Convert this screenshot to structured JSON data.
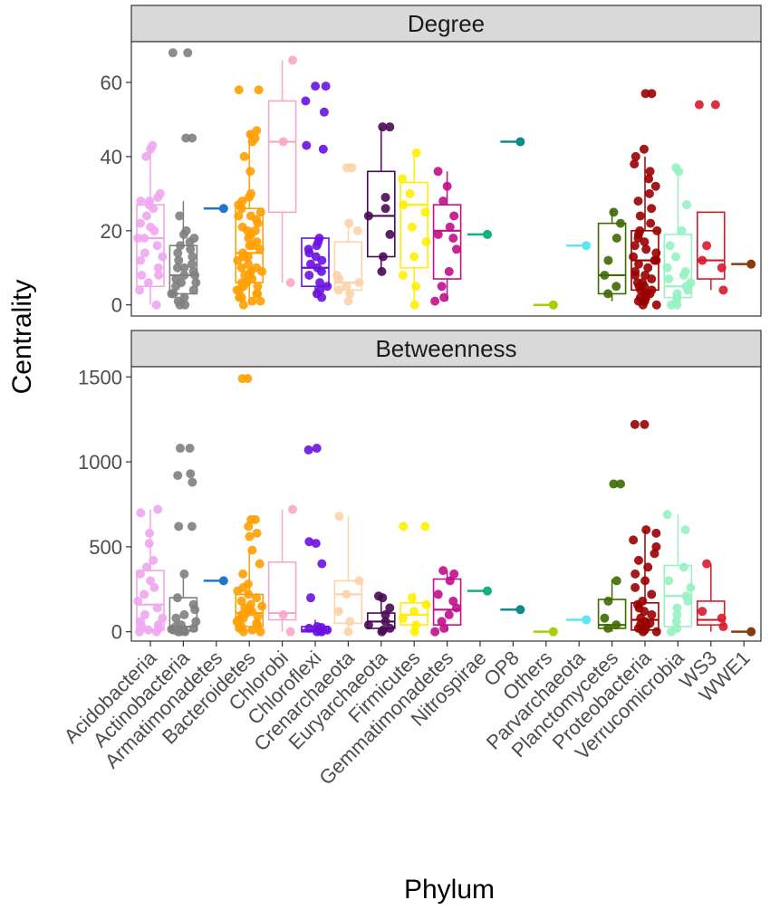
{
  "chart_data": {
    "type": "boxplot",
    "xlabel": "Phylum",
    "ylabel": "Centrality",
    "categories": [
      "Acidobacteria",
      "Actinobacteria",
      "Armatimonadetes",
      "Bacteroidetes",
      "Chlorobi",
      "Chloroflexi",
      "Crenarchaeota",
      "Euryarchaeota",
      "Firmicutes",
      "Gemmatimonadetes",
      "Nitrospirae",
      "OP8",
      "Others",
      "Parvarchaeota",
      "Planctomycetes",
      "Proteobacteria",
      "Verrucomicrobia",
      "WS3",
      "WWE1"
    ],
    "colors": [
      "#f0a6ef",
      "#7f7f7f",
      "#1f77c8",
      "#ff9f00",
      "#f7a7c6",
      "#6a11e0",
      "#fdd3a8",
      "#4b0a55",
      "#ffef00",
      "#c0108a",
      "#12b07a",
      "#138a8a",
      "#a4d100",
      "#5ee6f0",
      "#3f6a00",
      "#9a0000",
      "#96f2c2",
      "#d8192c",
      "#8b3a0a"
    ],
    "panels": [
      {
        "strip": "Degree",
        "ylim": [
          -3,
          71
        ],
        "yticks": [
          0,
          20,
          40,
          60
        ],
        "boxes": [
          {
            "q1": 5,
            "median": 18,
            "q3": 27,
            "lo": 0,
            "hi": 43
          },
          {
            "q1": 3,
            "median": 8,
            "q3": 16,
            "lo": 0,
            "hi": 28
          },
          null,
          {
            "q1": 6,
            "median": 14,
            "q3": 26,
            "lo": 0,
            "hi": 47
          },
          {
            "q1": 25,
            "median": 44,
            "q3": 55,
            "lo": 6,
            "hi": 66
          },
          {
            "q1": 5,
            "median": 10,
            "q3": 18,
            "lo": 2,
            "hi": 18
          },
          {
            "q1": 4,
            "median": 6,
            "q3": 17,
            "lo": 1,
            "hi": 22
          },
          {
            "q1": 13,
            "median": 24,
            "q3": 36,
            "lo": 9,
            "hi": 48
          },
          {
            "q1": 10,
            "median": 27,
            "q3": 33,
            "lo": 0,
            "hi": 41
          },
          {
            "q1": 7,
            "median": 20,
            "q3": 27,
            "lo": 1,
            "hi": 36
          },
          null,
          null,
          null,
          null,
          {
            "q1": 3,
            "median": 8,
            "q3": 22,
            "lo": 1,
            "hi": 26
          },
          {
            "q1": 4,
            "median": 12,
            "q3": 20,
            "lo": 0,
            "hi": 40
          },
          {
            "q1": 2,
            "median": 5,
            "q3": 19,
            "lo": 0,
            "hi": 36
          },
          {
            "q1": 7,
            "median": 12,
            "q3": 25,
            "lo": 4,
            "hi": 25
          },
          null
        ],
        "points": [
          [
            0,
            4,
            6,
            8,
            8,
            10,
            12,
            13,
            14,
            16,
            18,
            18,
            20,
            21,
            22,
            24,
            26,
            27,
            28,
            28,
            29,
            30,
            40,
            42,
            43
          ],
          [
            0,
            0,
            1,
            2,
            3,
            3,
            4,
            5,
            6,
            6,
            7,
            8,
            8,
            9,
            10,
            10,
            11,
            12,
            13,
            14,
            15,
            16,
            17,
            18,
            19,
            20,
            24,
            45,
            45,
            68,
            68
          ],
          [
            26
          ],
          [
            0,
            1,
            1,
            2,
            2,
            3,
            3,
            4,
            4,
            5,
            5,
            6,
            6,
            7,
            8,
            8,
            9,
            9,
            10,
            10,
            11,
            12,
            13,
            13,
            14,
            15,
            16,
            16,
            17,
            18,
            19,
            20,
            20,
            21,
            22,
            23,
            24,
            24,
            25,
            26,
            27,
            28,
            29,
            30,
            36,
            40,
            44,
            45,
            46,
            47,
            58,
            58
          ],
          [
            6,
            44,
            66
          ],
          [
            2,
            3,
            4,
            5,
            6,
            8,
            9,
            10,
            11,
            12,
            13,
            14,
            15,
            16,
            17,
            18,
            42,
            43,
            52,
            55,
            59,
            59
          ],
          [
            1,
            3,
            4,
            5,
            6,
            7,
            8,
            20,
            22,
            37,
            37
          ],
          [
            9,
            13,
            19,
            24,
            26,
            29,
            48,
            48
          ],
          [
            0,
            5,
            8,
            13,
            17,
            21,
            25,
            27,
            30,
            34,
            41
          ],
          [
            1,
            2,
            5,
            9,
            15,
            18,
            19,
            21,
            24,
            28,
            32,
            36
          ],
          [
            19
          ],
          [
            44
          ],
          [
            0
          ],
          [
            16
          ],
          [
            3,
            5,
            8,
            12,
            18,
            22,
            25
          ],
          [
            0,
            0,
            1,
            1,
            2,
            2,
            3,
            3,
            4,
            4,
            5,
            5,
            6,
            6,
            7,
            8,
            8,
            9,
            10,
            11,
            12,
            12,
            13,
            14,
            15,
            16,
            17,
            18,
            19,
            20,
            20,
            22,
            24,
            26,
            28,
            30,
            32,
            34,
            36,
            38,
            40,
            42,
            57,
            57
          ],
          [
            0,
            0,
            1,
            2,
            3,
            4,
            5,
            6,
            7,
            8,
            9,
            10,
            13,
            16,
            20,
            27,
            36,
            37
          ],
          [
            4,
            10,
            12,
            16,
            54,
            54
          ],
          [
            11
          ]
        ]
      },
      {
        "strip": "Betweenness",
        "ylim": [
          -55,
          1560
        ],
        "yticks": [
          0,
          500,
          1000,
          1500
        ],
        "boxes": [
          {
            "q1": 10,
            "median": 160,
            "q3": 360,
            "lo": 0,
            "hi": 720
          },
          {
            "q1": 5,
            "median": 30,
            "q3": 200,
            "lo": 0,
            "hi": 340
          },
          null,
          {
            "q1": 30,
            "median": 110,
            "q3": 220,
            "lo": 0,
            "hi": 480
          },
          {
            "q1": 70,
            "median": 110,
            "q3": 410,
            "lo": 0,
            "hi": 720
          },
          {
            "q1": 0,
            "median": 10,
            "q3": 30,
            "lo": 0,
            "hi": 70
          },
          {
            "q1": 50,
            "median": 220,
            "q3": 300,
            "lo": 0,
            "hi": 680
          },
          {
            "q1": 20,
            "median": 60,
            "q3": 110,
            "lo": 0,
            "hi": 210
          },
          {
            "q1": 40,
            "median": 100,
            "q3": 170,
            "lo": 0,
            "hi": 230
          },
          {
            "q1": 40,
            "median": 130,
            "q3": 310,
            "lo": 0,
            "hi": 360
          },
          null,
          null,
          null,
          null,
          {
            "q1": 20,
            "median": 40,
            "q3": 190,
            "lo": 0,
            "hi": 310
          },
          {
            "q1": 10,
            "median": 70,
            "q3": 170,
            "lo": 0,
            "hi": 600
          },
          {
            "q1": 30,
            "median": 210,
            "q3": 390,
            "lo": 0,
            "hi": 690
          },
          {
            "q1": 40,
            "median": 70,
            "q3": 180,
            "lo": 0,
            "hi": 400
          },
          null
        ],
        "points": [
          [
            0,
            0,
            10,
            20,
            30,
            40,
            60,
            80,
            100,
            140,
            180,
            220,
            260,
            300,
            340,
            380,
            420,
            520,
            580,
            700,
            720
          ],
          [
            0,
            0,
            0,
            5,
            10,
            15,
            20,
            30,
            40,
            60,
            80,
            100,
            130,
            160,
            200,
            340,
            620,
            620,
            880,
            920,
            930,
            1080,
            1080
          ],
          [
            300
          ],
          [
            0,
            0,
            10,
            20,
            30,
            40,
            50,
            60,
            70,
            80,
            90,
            100,
            110,
            120,
            130,
            140,
            150,
            160,
            180,
            200,
            220,
            240,
            260,
            280,
            340,
            400,
            480,
            560,
            580,
            620,
            660,
            660,
            1490,
            1490
          ],
          [
            0,
            100,
            720
          ],
          [
            0,
            0,
            5,
            10,
            15,
            20,
            25,
            30,
            200,
            400,
            520,
            530,
            1070,
            1080
          ],
          [
            0,
            60,
            120,
            220,
            300,
            680
          ],
          [
            0,
            10,
            20,
            40,
            60,
            100,
            140,
            200,
            210
          ],
          [
            0,
            40,
            80,
            120,
            160,
            200,
            620,
            620
          ],
          [
            0,
            20,
            60,
            100,
            140,
            180,
            220,
            300,
            340,
            360
          ],
          [
            240
          ],
          [
            130
          ],
          [
            0
          ],
          [
            70
          ],
          [
            20,
            40,
            80,
            180,
            300,
            870,
            870
          ],
          [
            0,
            0,
            10,
            20,
            30,
            40,
            50,
            60,
            80,
            100,
            120,
            140,
            160,
            180,
            220,
            260,
            300,
            340,
            380,
            420,
            460,
            500,
            540,
            580,
            600,
            1220,
            1220
          ],
          [
            0,
            20,
            60,
            100,
            140,
            180,
            210,
            260,
            300,
            380,
            600,
            690
          ],
          [
            30,
            80,
            120,
            400
          ],
          [
            0
          ]
        ]
      }
    ]
  }
}
